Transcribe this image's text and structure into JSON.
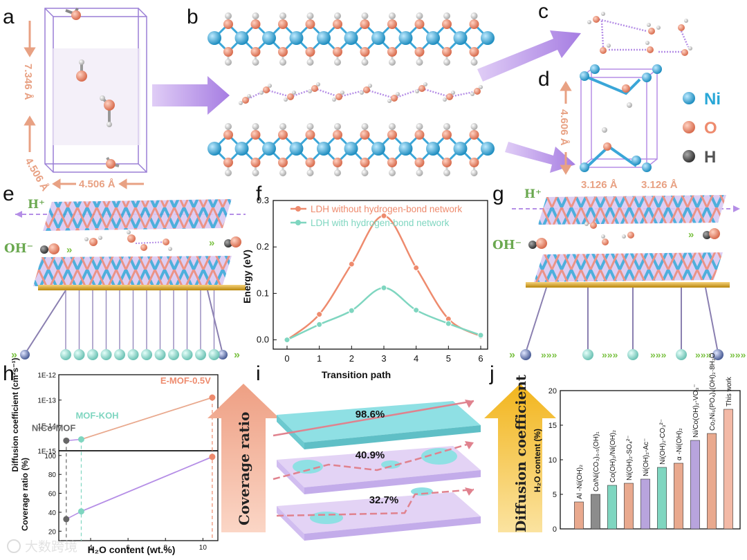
{
  "panels": {
    "a": "a",
    "b": "b",
    "c": "c",
    "d": "d",
    "e": "e",
    "f": "f",
    "g": "g",
    "h": "h",
    "i": "i",
    "j": "j"
  },
  "panel_a": {
    "lat_c": "7.346 Å",
    "lat_a": "4.506 Å",
    "lat_b": "4.506 Å"
  },
  "panel_d": {
    "lat_c": "4.606 Å",
    "lat_a": "3.126 Å",
    "lat_b": "3.126 Å"
  },
  "legend_atoms": [
    {
      "label": "Ni",
      "color": "#29a7d7"
    },
    {
      "label": "O",
      "color": "#ee8b6e"
    },
    {
      "label": "H",
      "color": "#555555"
    }
  ],
  "panel_e": {
    "hplus": "H⁺",
    "ohminus": "OH⁻"
  },
  "panel_g": {
    "hplus": "H⁺",
    "ohminus": "OH⁻"
  },
  "colors": {
    "orange": "#ee8b6e",
    "teal": "#7fd6c0",
    "purple": "#b18be0",
    "green": "#7ac142"
  },
  "chart_data": [
    {
      "panel": "f",
      "type": "line",
      "xlabel": "Transition path",
      "ylabel": "Energy (eV)",
      "xlim": [
        0,
        6
      ],
      "ylim": [
        -0.02,
        0.3
      ],
      "xticks": [
        "0",
        "1",
        "2",
        "3",
        "4",
        "5",
        "6"
      ],
      "yticks": [
        "0.0",
        "0.1",
        "0.2",
        "0.3"
      ],
      "x": [
        0,
        1,
        2,
        3,
        4,
        5,
        6
      ],
      "series": [
        {
          "name": "LDH without hydrogen-bond network",
          "color": "#ee8b6e",
          "values": [
            0.0,
            0.055,
            0.163,
            0.267,
            0.155,
            0.045,
            0.008
          ]
        },
        {
          "name": "LDH with hydrogen-bond network",
          "color": "#7fd6c0",
          "values": [
            0.0,
            0.033,
            0.063,
            0.112,
            0.064,
            0.035,
            0.01
          ]
        }
      ]
    },
    {
      "panel": "h",
      "type": "scatter",
      "xlabel": "H₂O content (wt.%)",
      "ylabel_top": "Diffusion coefficient (cm²s⁻¹)",
      "ylabel_bottom": "Coverage ratio (%)",
      "xlim": [
        2.3,
        10.8
      ],
      "xticks": [
        "4",
        "6",
        "8",
        "10"
      ],
      "yticks_top": [
        "1E-15",
        "1E-14",
        "1E-13",
        "1E-12"
      ],
      "yticks_bottom": [
        "20",
        "40",
        "60",
        "80",
        "100"
      ],
      "points": [
        {
          "name": "NiCo-MOF",
          "x": 2.7,
          "diffusion_log10": -14.6,
          "coverage": 32.7,
          "color": "#666666"
        },
        {
          "name": "MOF-KOH",
          "x": 3.5,
          "diffusion_log10": -14.55,
          "coverage": 40.9,
          "color": "#7fd6c0"
        },
        {
          "name": "E-MOF-0.5V",
          "x": 10.5,
          "diffusion_log10": -12.9,
          "coverage": 98.6,
          "color": "#ee8b6e"
        }
      ]
    },
    {
      "panel": "j",
      "type": "bar",
      "ylabel": "H₂O content (%)",
      "ylim": [
        0,
        20
      ],
      "yticks": [
        "0",
        "5",
        "10",
        "15",
        "20"
      ],
      "categories": [
        "Al -Ni(OH)₂",
        "Co/Ni(CO₃)₀.₅(OH)₁",
        "Co(OH)₂/Ni(OH)₂",
        "Ni(OH)₂-SO₄²⁻",
        "Ni(OH)₂-Ac⁻",
        "Ni(OH)₂-CO₃²⁻",
        "α -Ni(OH)₂",
        "Ni/Co(OH)₂-VO₃⁻",
        "Co₂Ni₆(PO₄)₆(OH)₂·8H₂O",
        "This work"
      ],
      "values": [
        3.9,
        5.0,
        6.3,
        6.6,
        7.2,
        8.9,
        9.5,
        12.8,
        13.8,
        17.3
      ],
      "colors": [
        "#e9a98e",
        "#8c8c8c",
        "#7fd6c0",
        "#e9a98e",
        "#b8a4dd",
        "#7fd6c0",
        "#e9a98e",
        "#b8a4dd",
        "#e9a98e",
        "#f3b9a6"
      ]
    }
  ],
  "panel_i": {
    "ratios": [
      "98.6%",
      "40.9%",
      "32.7%"
    ],
    "left_arrow": "Coverage ratio",
    "right_arrow": "Diffusion coefficient"
  },
  "watermark": "大数跨境"
}
